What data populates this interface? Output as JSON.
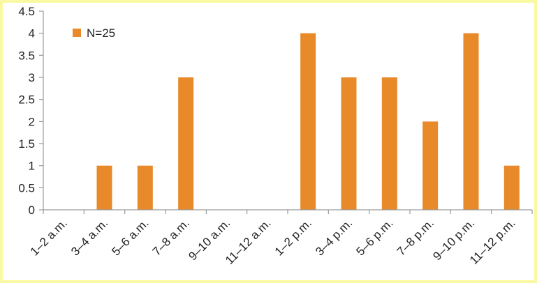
{
  "chart_data": {
    "type": "bar",
    "categories": [
      "1–2 a.m.",
      "3–4 a.m.",
      "5–6 a.m.",
      "7–8 a.m.",
      "9–10 a.m.",
      "11–12 a.m.",
      "1–2 p.m.",
      "3–4 p.m.",
      "5–6 p.m.",
      "7–8 p.m.",
      "9–10 p.m.",
      "11–12 p.m."
    ],
    "series": [
      {
        "name": "N=25",
        "values": [
          0,
          1,
          1,
          3,
          0,
          0,
          4,
          3,
          3,
          2,
          4,
          1
        ]
      }
    ],
    "ylim": [
      0,
      4.5
    ],
    "yticks": [
      "0",
      "0.5",
      "1",
      "1.5",
      "2",
      "2.5",
      "3",
      "3.5",
      "4",
      "4.5"
    ],
    "ytick_values": [
      0,
      0.5,
      1,
      1.5,
      2,
      2.5,
      3,
      3.5,
      4,
      4.5
    ],
    "grid": false,
    "legend_position": "top-left",
    "colors": {
      "bar": "#e8892a",
      "axis": "#9a9a9a",
      "frame_bg": "#fbf8a3"
    }
  }
}
